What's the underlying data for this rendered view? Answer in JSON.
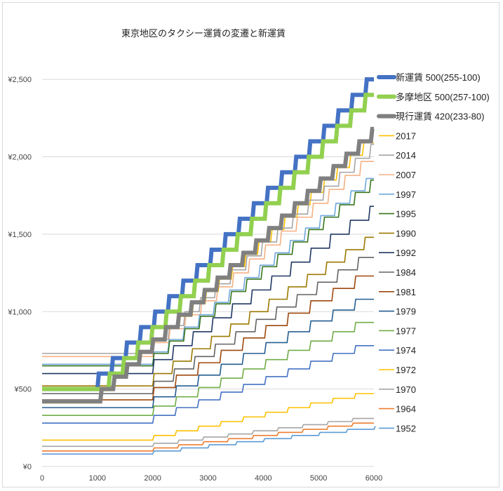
{
  "chart_data": {
    "type": "line",
    "title": "東京地区のタクシー運賃の変遷と新運賃",
    "xlabel": "",
    "ylabel": "",
    "xlim": [
      0,
      6000
    ],
    "ylim": [
      0,
      2750
    ],
    "x_ticks": [
      "0",
      "1000",
      "2000",
      "3000",
      "4000",
      "5000",
      "6000"
    ],
    "x_tick_values": [
      0,
      1000,
      2000,
      3000,
      4000,
      5000,
      6000
    ],
    "y_ticks": [
      "¥0",
      "¥500",
      "¥1,000",
      "¥1,500",
      "¥2,000",
      "¥2,500"
    ],
    "y_tick_values": [
      0,
      500,
      1000,
      1500,
      2000,
      2500
    ],
    "grid": "horizontal",
    "legend_position": "right",
    "step_model": "fare = base_fare up to base_distance; then +increment every step_distance (m)",
    "series": [
      {
        "name": "新運賃 500(255-100)",
        "base_fare": 500,
        "base_distance": 1000,
        "step_distance": 255,
        "increment": 100,
        "color": "#4472c4",
        "thick": true
      },
      {
        "name": "多摩地区 500(257-100)",
        "base_fare": 500,
        "base_distance": 1200,
        "step_distance": 257,
        "increment": 100,
        "color": "#92d050",
        "thick": true
      },
      {
        "name": "現行運賃 420(233-80)",
        "base_fare": 420,
        "base_distance": 1052,
        "step_distance": 233,
        "increment": 80,
        "color": "#808080",
        "thick": true
      },
      {
        "name": "2017",
        "base_fare": 410,
        "base_distance": 1052,
        "step_distance": 237,
        "increment": 80,
        "color": "#ffc000"
      },
      {
        "name": "2014",
        "base_fare": 730,
        "base_distance": 2000,
        "step_distance": 280,
        "increment": 90,
        "color": "#a5a5a5"
      },
      {
        "name": "2007",
        "base_fare": 710,
        "base_distance": 2000,
        "step_distance": 288,
        "increment": 90,
        "color": "#f4b183"
      },
      {
        "name": "1997",
        "base_fare": 660,
        "base_distance": 2000,
        "step_distance": 274,
        "increment": 80,
        "color": "#6fa8dc"
      },
      {
        "name": "1995",
        "base_fare": 650,
        "base_distance": 2000,
        "step_distance": 280,
        "increment": 80,
        "color": "#38761d"
      },
      {
        "name": "1990",
        "base_fare": 520,
        "base_distance": 2000,
        "step_distance": 347,
        "increment": 80,
        "color": "#9c7a00"
      },
      {
        "name": "1992",
        "base_fare": 600,
        "base_distance": 2000,
        "step_distance": 355,
        "increment": 90,
        "color": "#203864"
      },
      {
        "name": "1984",
        "base_fare": 470,
        "base_distance": 2000,
        "step_distance": 370,
        "increment": 80,
        "color": "#636363"
      },
      {
        "name": "1981",
        "base_fare": 430,
        "base_distance": 2000,
        "step_distance": 405,
        "increment": 80,
        "color": "#9e480e"
      },
      {
        "name": "1979",
        "base_fare": 380,
        "base_distance": 2000,
        "step_distance": 405,
        "increment": 70,
        "color": "#255e91"
      },
      {
        "name": "1977",
        "base_fare": 330,
        "base_distance": 2000,
        "step_distance": 405,
        "increment": 60,
        "color": "#70ad47"
      },
      {
        "name": "1974",
        "base_fare": 280,
        "base_distance": 2000,
        "step_distance": 405,
        "increment": 50,
        "color": "#4472c4"
      },
      {
        "name": "1972",
        "base_fare": 170,
        "base_distance": 2000,
        "step_distance": 405,
        "increment": 30,
        "color": "#ffc000"
      },
      {
        "name": "1970",
        "base_fare": 130,
        "base_distance": 2000,
        "step_distance": 450,
        "increment": 20,
        "color": "#a5a5a5"
      },
      {
        "name": "1964",
        "base_fare": 100,
        "base_distance": 2000,
        "step_distance": 450,
        "increment": 20,
        "color": "#ed7d31"
      },
      {
        "name": "1952",
        "base_fare": 80,
        "base_distance": 2000,
        "step_distance": 500,
        "increment": 20,
        "color": "#5b9bd5"
      }
    ]
  }
}
